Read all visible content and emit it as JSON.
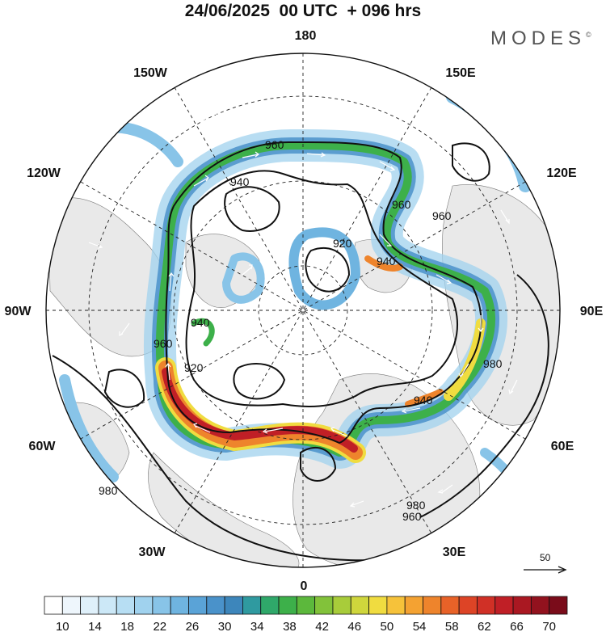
{
  "title": "24/06/2025  00 UTC  + 096 hrs",
  "brand": "MODES",
  "brand_mark": "©",
  "meridian_labels": {
    "n180": "180",
    "w150": "150W",
    "e150": "150E",
    "w120": "120W",
    "e120": "120E",
    "w90": "90W",
    "e90": "90E",
    "w60": "60W",
    "e60": "60E",
    "w30": "30W",
    "e30": "30E",
    "s0": "0"
  },
  "contour_labels": [
    "960",
    "940",
    "960",
    "960",
    "920",
    "940",
    "940",
    "960",
    "920",
    "940",
    "980",
    "960",
    "980",
    "980"
  ],
  "reference_vector": {
    "value": "50"
  },
  "colorbar": {
    "ticks": [
      "10",
      "14",
      "18",
      "22",
      "26",
      "30",
      "34",
      "38",
      "42",
      "46",
      "50",
      "54",
      "58",
      "62",
      "66",
      "70"
    ],
    "colors": [
      "#ffffff",
      "#eef6fc",
      "#dff0fa",
      "#cce8f7",
      "#b7def3",
      "#a0d2ee",
      "#88c4e8",
      "#6fb4e0",
      "#5aa3d7",
      "#4a92ca",
      "#3d86bb",
      "#2f9aa0",
      "#2fa86a",
      "#3db04a",
      "#5cb83c",
      "#82c23a",
      "#a8cc3a",
      "#cfd63c",
      "#f0dc40",
      "#f6c23a",
      "#f4a232",
      "#ee842c",
      "#e86228",
      "#dd4426",
      "#d03026",
      "#c01f26",
      "#aa1822",
      "#92121e",
      "#7a0c1a"
    ]
  }
}
